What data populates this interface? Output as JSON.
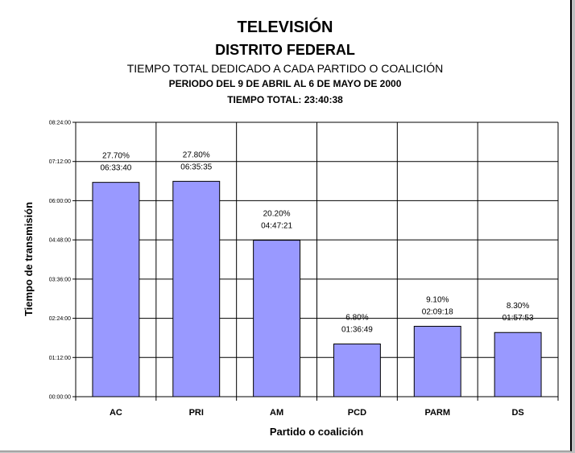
{
  "chart_data": {
    "type": "bar",
    "title": "TELEVISIÓN",
    "subtitle": "DISTRITO FEDERAL",
    "subtitle2": "TIEMPO TOTAL DEDICADO A CADA PARTIDO O COALICIÓN",
    "subtitle3": "PERIODO DEL 9 DE ABRIL AL 6 DE MAYO DE 2000",
    "subtitle4": "TIEMPO TOTAL: 23:40:38",
    "xlabel": "Partido o coalición",
    "ylabel": "Tiempo de transmisión",
    "categories": [
      "AC",
      "PRI",
      "AM",
      "PCD",
      "PARM",
      "DS"
    ],
    "values": [
      "06:33:40",
      "06:35:35",
      "04:47:21",
      "01:36:49",
      "02:09:18",
      "01:57:53"
    ],
    "percentages": [
      "27.70%",
      "27.80%",
      "20.20%",
      "6.80%",
      "9.10%",
      "8.30%"
    ],
    "ylim": [
      "00:00:00",
      "08:24:00"
    ],
    "y_ticks": [
      "00:00:00",
      "01:12:00",
      "02:24:00",
      "03:36:00",
      "04:48:00",
      "06:00:00",
      "07:12:00",
      "08:24:00"
    ],
    "grid": true,
    "bar_color": "#9999ff"
  }
}
